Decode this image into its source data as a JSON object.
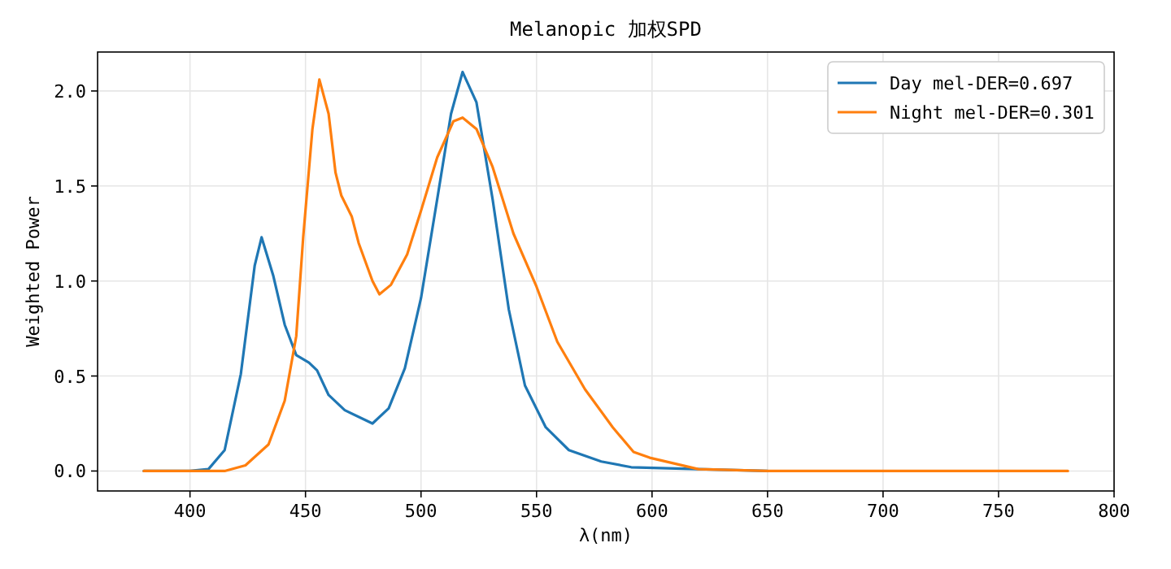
{
  "chart_data": {
    "type": "line",
    "title": "Melanopic 加权SPD",
    "xlabel": "λ(nm)",
    "ylabel": "Weighted Power",
    "xlim": [
      360,
      800
    ],
    "ylim": [
      -0.105,
      2.205
    ],
    "xticks": [
      400,
      450,
      500,
      550,
      600,
      650,
      700,
      750,
      800
    ],
    "yticks": [
      {
        "value": 0,
        "label": "0.0"
      },
      {
        "value": 0.5,
        "label": "0.5"
      },
      {
        "value": 1,
        "label": "1.0"
      },
      {
        "value": 1.5,
        "label": "1.5"
      },
      {
        "value": 2,
        "label": "2.0"
      }
    ],
    "grid": true,
    "legend": "top right",
    "series": [
      {
        "name": "Day mel-DER=0.697",
        "color": "#1f77b4",
        "x": [
          380,
          400,
          408,
          415,
          422,
          428,
          431,
          436,
          441,
          446,
          451.5,
          455,
          460,
          467,
          479,
          486,
          493,
          500,
          507,
          513,
          518,
          524,
          531,
          538,
          545,
          554,
          564,
          578,
          591,
          620,
          650
        ],
        "values": [
          0,
          0,
          0.01,
          0.11,
          0.51,
          1.08,
          1.23,
          1.03,
          0.77,
          0.61,
          0.57,
          0.53,
          0.4,
          0.32,
          0.25,
          0.33,
          0.54,
          0.91,
          1.43,
          1.88,
          2.1,
          1.94,
          1.43,
          0.85,
          0.45,
          0.23,
          0.11,
          0.05,
          0.02,
          0.01,
          0
        ]
      },
      {
        "name": "Night mel-DER=0.301",
        "color": "#ff7f0e",
        "x": [
          380,
          400,
          415,
          424,
          434,
          441,
          446,
          449,
          453,
          456,
          460,
          463,
          465.5,
          470,
          473,
          479,
          482,
          487,
          494,
          500,
          507,
          514,
          518,
          524,
          531,
          540,
          550,
          559,
          571,
          583,
          592,
          599,
          620,
          650,
          700,
          780
        ],
        "values": [
          0,
          0,
          0,
          0.03,
          0.14,
          0.37,
          0.71,
          1.23,
          1.8,
          2.06,
          1.88,
          1.57,
          1.45,
          1.34,
          1.2,
          1,
          0.93,
          0.98,
          1.14,
          1.37,
          1.65,
          1.84,
          1.86,
          1.8,
          1.6,
          1.25,
          0.97,
          0.68,
          0.43,
          0.23,
          0.1,
          0.07,
          0.01,
          0,
          0,
          0
        ]
      }
    ]
  }
}
